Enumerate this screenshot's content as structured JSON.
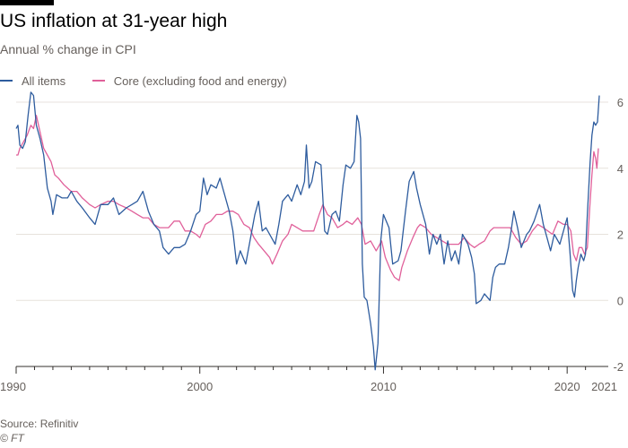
{
  "chart_data": {
    "type": "line",
    "title": "US inflation at 31-year high",
    "subtitle": "Annual % change in CPI",
    "xlim": [
      1990,
      2021.75
    ],
    "ylim": [
      -2,
      6
    ],
    "yticks": [
      -2,
      0,
      2,
      4,
      6
    ],
    "xticks": [
      {
        "value": 1990,
        "label": "1990"
      },
      {
        "value": 2000,
        "label": "2000"
      },
      {
        "value": 2010,
        "label": "2010"
      },
      {
        "value": 2020,
        "label": "2020"
      },
      {
        "value": 2021.5,
        "label": "2021"
      }
    ],
    "series": [
      {
        "name": "All items",
        "color": "#2e5c9e",
        "points": [
          [
            1990.0,
            5.2
          ],
          [
            1990.1,
            5.3
          ],
          [
            1990.2,
            4.7
          ],
          [
            1990.35,
            4.6
          ],
          [
            1990.5,
            4.8
          ],
          [
            1990.65,
            5.6
          ],
          [
            1990.8,
            6.3
          ],
          [
            1990.95,
            6.2
          ],
          [
            1991.1,
            5.3
          ],
          [
            1991.3,
            4.9
          ],
          [
            1991.5,
            4.4
          ],
          [
            1991.7,
            3.4
          ],
          [
            1991.9,
            3.0
          ],
          [
            1992.0,
            2.6
          ],
          [
            1992.2,
            3.2
          ],
          [
            1992.5,
            3.1
          ],
          [
            1992.8,
            3.1
          ],
          [
            1993.0,
            3.3
          ],
          [
            1993.3,
            3.0
          ],
          [
            1993.6,
            2.8
          ],
          [
            1994.0,
            2.5
          ],
          [
            1994.3,
            2.3
          ],
          [
            1994.6,
            2.9
          ],
          [
            1995.0,
            2.9
          ],
          [
            1995.3,
            3.1
          ],
          [
            1995.6,
            2.6
          ],
          [
            1996.0,
            2.8
          ],
          [
            1996.3,
            2.9
          ],
          [
            1996.6,
            3.0
          ],
          [
            1996.9,
            3.3
          ],
          [
            1997.2,
            2.7
          ],
          [
            1997.5,
            2.3
          ],
          [
            1997.8,
            2.1
          ],
          [
            1998.0,
            1.6
          ],
          [
            1998.3,
            1.4
          ],
          [
            1998.6,
            1.6
          ],
          [
            1998.9,
            1.6
          ],
          [
            1999.2,
            1.7
          ],
          [
            1999.5,
            2.1
          ],
          [
            1999.8,
            2.6
          ],
          [
            2000.0,
            2.7
          ],
          [
            2000.2,
            3.7
          ],
          [
            2000.4,
            3.2
          ],
          [
            2000.6,
            3.5
          ],
          [
            2000.9,
            3.4
          ],
          [
            2001.1,
            3.7
          ],
          [
            2001.3,
            3.3
          ],
          [
            2001.6,
            2.7
          ],
          [
            2001.8,
            2.1
          ],
          [
            2002.0,
            1.1
          ],
          [
            2002.2,
            1.5
          ],
          [
            2002.5,
            1.1
          ],
          [
            2002.8,
            2.0
          ],
          [
            2003.0,
            2.6
          ],
          [
            2003.2,
            3.0
          ],
          [
            2003.4,
            2.1
          ],
          [
            2003.6,
            2.2
          ],
          [
            2003.9,
            1.9
          ],
          [
            2004.1,
            1.7
          ],
          [
            2004.3,
            2.3
          ],
          [
            2004.5,
            3.0
          ],
          [
            2004.8,
            3.2
          ],
          [
            2005.0,
            3.0
          ],
          [
            2005.3,
            3.5
          ],
          [
            2005.5,
            3.2
          ],
          [
            2005.7,
            3.6
          ],
          [
            2005.8,
            4.7
          ],
          [
            2005.95,
            3.4
          ],
          [
            2006.1,
            3.6
          ],
          [
            2006.3,
            4.2
          ],
          [
            2006.6,
            4.1
          ],
          [
            2006.8,
            2.1
          ],
          [
            2006.95,
            2.0
          ],
          [
            2007.2,
            2.6
          ],
          [
            2007.4,
            2.7
          ],
          [
            2007.6,
            2.4
          ],
          [
            2007.8,
            3.5
          ],
          [
            2007.95,
            4.1
          ],
          [
            2008.2,
            4.0
          ],
          [
            2008.4,
            4.2
          ],
          [
            2008.55,
            5.6
          ],
          [
            2008.65,
            5.4
          ],
          [
            2008.75,
            4.9
          ],
          [
            2008.85,
            1.1
          ],
          [
            2008.95,
            0.1
          ],
          [
            2009.1,
            0.0
          ],
          [
            2009.3,
            -0.7
          ],
          [
            2009.45,
            -1.4
          ],
          [
            2009.55,
            -2.1
          ],
          [
            2009.7,
            -1.3
          ],
          [
            2009.85,
            1.8
          ],
          [
            2010.0,
            2.6
          ],
          [
            2010.3,
            2.2
          ],
          [
            2010.5,
            1.1
          ],
          [
            2010.8,
            1.2
          ],
          [
            2010.95,
            1.5
          ],
          [
            2011.2,
            2.7
          ],
          [
            2011.4,
            3.6
          ],
          [
            2011.65,
            3.9
          ],
          [
            2011.8,
            3.4
          ],
          [
            2012.0,
            2.9
          ],
          [
            2012.3,
            2.3
          ],
          [
            2012.5,
            1.4
          ],
          [
            2012.7,
            2.0
          ],
          [
            2012.9,
            1.7
          ],
          [
            2013.1,
            2.0
          ],
          [
            2013.3,
            1.1
          ],
          [
            2013.5,
            1.8
          ],
          [
            2013.7,
            1.2
          ],
          [
            2013.9,
            1.5
          ],
          [
            2014.1,
            1.1
          ],
          [
            2014.3,
            2.0
          ],
          [
            2014.6,
            1.7
          ],
          [
            2014.8,
            1.3
          ],
          [
            2014.95,
            0.8
          ],
          [
            2015.05,
            -0.1
          ],
          [
            2015.3,
            0.0
          ],
          [
            2015.5,
            0.2
          ],
          [
            2015.8,
            0.0
          ],
          [
            2015.95,
            0.7
          ],
          [
            2016.1,
            1.0
          ],
          [
            2016.3,
            1.1
          ],
          [
            2016.6,
            1.1
          ],
          [
            2016.8,
            1.6
          ],
          [
            2016.95,
            2.1
          ],
          [
            2017.1,
            2.7
          ],
          [
            2017.3,
            2.2
          ],
          [
            2017.5,
            1.6
          ],
          [
            2017.8,
            2.0
          ],
          [
            2017.95,
            2.1
          ],
          [
            2018.2,
            2.4
          ],
          [
            2018.5,
            2.9
          ],
          [
            2018.7,
            2.3
          ],
          [
            2018.9,
            1.9
          ],
          [
            2019.1,
            1.5
          ],
          [
            2019.3,
            2.0
          ],
          [
            2019.6,
            1.7
          ],
          [
            2019.9,
            2.3
          ],
          [
            2020.0,
            2.5
          ],
          [
            2020.15,
            1.5
          ],
          [
            2020.3,
            0.3
          ],
          [
            2020.4,
            0.1
          ],
          [
            2020.5,
            0.6
          ],
          [
            2020.6,
            1.0
          ],
          [
            2020.75,
            1.4
          ],
          [
            2020.9,
            1.2
          ],
          [
            2021.0,
            1.4
          ],
          [
            2021.1,
            2.6
          ],
          [
            2021.25,
            4.2
          ],
          [
            2021.35,
            5.0
          ],
          [
            2021.45,
            5.4
          ],
          [
            2021.55,
            5.3
          ],
          [
            2021.65,
            5.4
          ],
          [
            2021.75,
            6.2
          ]
        ]
      },
      {
        "name": "Core (excluding food and energy)",
        "color": "#e0609a",
        "points": [
          [
            1990.0,
            4.4
          ],
          [
            1990.1,
            4.4
          ],
          [
            1990.2,
            4.6
          ],
          [
            1990.4,
            4.8
          ],
          [
            1990.6,
            5.0
          ],
          [
            1990.8,
            5.3
          ],
          [
            1990.95,
            5.2
          ],
          [
            1991.1,
            5.6
          ],
          [
            1991.3,
            5.1
          ],
          [
            1991.5,
            4.6
          ],
          [
            1991.7,
            4.4
          ],
          [
            1991.9,
            4.2
          ],
          [
            1992.1,
            3.8
          ],
          [
            1992.3,
            3.7
          ],
          [
            1992.6,
            3.5
          ],
          [
            1993.0,
            3.3
          ],
          [
            1993.3,
            3.3
          ],
          [
            1993.6,
            3.1
          ],
          [
            1994.0,
            2.9
          ],
          [
            1994.3,
            2.8
          ],
          [
            1994.6,
            2.9
          ],
          [
            1995.0,
            3.0
          ],
          [
            1995.3,
            3.0
          ],
          [
            1995.6,
            2.9
          ],
          [
            1996.0,
            2.8
          ],
          [
            1996.3,
            2.7
          ],
          [
            1996.6,
            2.6
          ],
          [
            1996.9,
            2.5
          ],
          [
            1997.2,
            2.5
          ],
          [
            1997.5,
            2.3
          ],
          [
            1997.8,
            2.2
          ],
          [
            1998.0,
            2.2
          ],
          [
            1998.3,
            2.2
          ],
          [
            1998.6,
            2.4
          ],
          [
            1998.9,
            2.4
          ],
          [
            1999.2,
            2.1
          ],
          [
            1999.5,
            2.1
          ],
          [
            1999.8,
            2.0
          ],
          [
            2000.0,
            1.9
          ],
          [
            2000.3,
            2.3
          ],
          [
            2000.6,
            2.4
          ],
          [
            2000.9,
            2.6
          ],
          [
            2001.2,
            2.6
          ],
          [
            2001.5,
            2.7
          ],
          [
            2001.8,
            2.7
          ],
          [
            2002.1,
            2.6
          ],
          [
            2002.4,
            2.3
          ],
          [
            2002.7,
            2.2
          ],
          [
            2002.95,
            1.9
          ],
          [
            2003.2,
            1.7
          ],
          [
            2003.5,
            1.5
          ],
          [
            2003.8,
            1.3
          ],
          [
            2003.95,
            1.1
          ],
          [
            2004.2,
            1.4
          ],
          [
            2004.5,
            1.8
          ],
          [
            2004.8,
            2.0
          ],
          [
            2005.0,
            2.3
          ],
          [
            2005.3,
            2.2
          ],
          [
            2005.6,
            2.1
          ],
          [
            2005.9,
            2.1
          ],
          [
            2006.2,
            2.1
          ],
          [
            2006.5,
            2.6
          ],
          [
            2006.7,
            2.9
          ],
          [
            2006.95,
            2.6
          ],
          [
            2007.2,
            2.5
          ],
          [
            2007.5,
            2.2
          ],
          [
            2007.8,
            2.3
          ],
          [
            2008.0,
            2.4
          ],
          [
            2008.3,
            2.3
          ],
          [
            2008.6,
            2.5
          ],
          [
            2008.8,
            2.3
          ],
          [
            2009.0,
            1.7
          ],
          [
            2009.3,
            1.8
          ],
          [
            2009.6,
            1.5
          ],
          [
            2009.9,
            1.8
          ],
          [
            2010.1,
            1.3
          ],
          [
            2010.4,
            0.9
          ],
          [
            2010.6,
            0.7
          ],
          [
            2010.85,
            0.6
          ],
          [
            2011.0,
            1.0
          ],
          [
            2011.3,
            1.5
          ],
          [
            2011.6,
            1.9
          ],
          [
            2011.85,
            2.2
          ],
          [
            2012.0,
            2.3
          ],
          [
            2012.3,
            2.2
          ],
          [
            2012.6,
            2.0
          ],
          [
            2012.9,
            1.9
          ],
          [
            2013.2,
            1.8
          ],
          [
            2013.5,
            1.7
          ],
          [
            2013.8,
            1.7
          ],
          [
            2014.1,
            1.7
          ],
          [
            2014.4,
            1.9
          ],
          [
            2014.7,
            1.7
          ],
          [
            2014.95,
            1.6
          ],
          [
            2015.2,
            1.7
          ],
          [
            2015.5,
            1.8
          ],
          [
            2015.8,
            2.1
          ],
          [
            2016.0,
            2.2
          ],
          [
            2016.3,
            2.2
          ],
          [
            2016.6,
            2.2
          ],
          [
            2016.9,
            2.2
          ],
          [
            2017.2,
            1.9
          ],
          [
            2017.5,
            1.7
          ],
          [
            2017.8,
            1.8
          ],
          [
            2018.1,
            2.1
          ],
          [
            2018.4,
            2.3
          ],
          [
            2018.7,
            2.2
          ],
          [
            2018.95,
            2.1
          ],
          [
            2019.2,
            2.0
          ],
          [
            2019.5,
            2.4
          ],
          [
            2019.8,
            2.3
          ],
          [
            2020.0,
            2.3
          ],
          [
            2020.2,
            2.1
          ],
          [
            2020.35,
            1.4
          ],
          [
            2020.5,
            1.2
          ],
          [
            2020.65,
            1.6
          ],
          [
            2020.8,
            1.6
          ],
          [
            2020.95,
            1.4
          ],
          [
            2021.1,
            1.6
          ],
          [
            2021.25,
            3.0
          ],
          [
            2021.35,
            3.8
          ],
          [
            2021.45,
            4.5
          ],
          [
            2021.55,
            4.3
          ],
          [
            2021.62,
            4.0
          ],
          [
            2021.7,
            4.6
          ]
        ]
      }
    ]
  },
  "source": "Source: Refinitiv",
  "credit": "© FT"
}
